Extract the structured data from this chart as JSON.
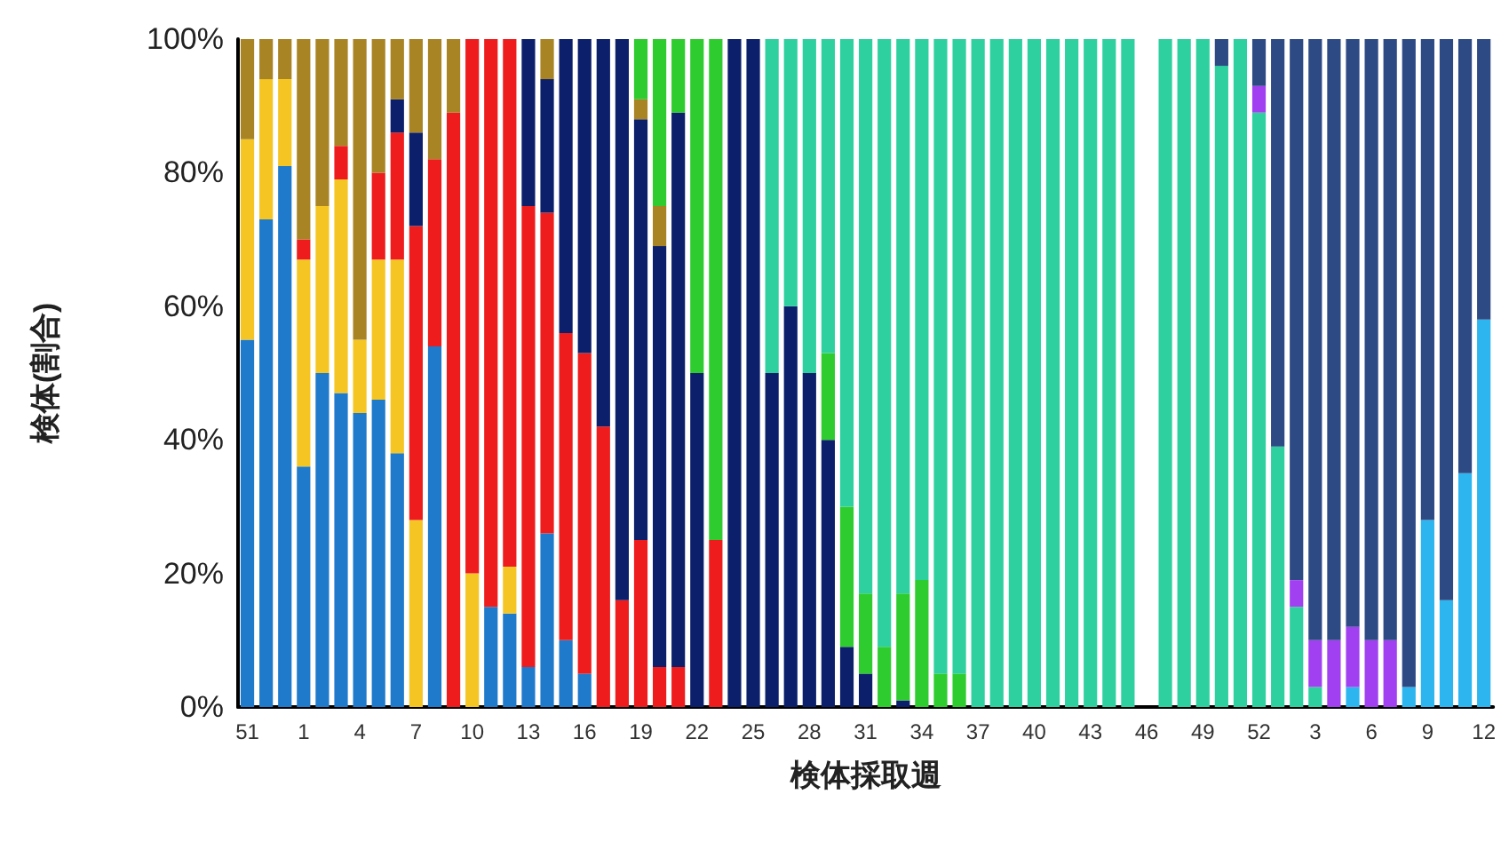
{
  "chart_data": {
    "type": "bar",
    "stacked": true,
    "xlabel": "検体採取週",
    "ylabel": "検体(割合)",
    "grid": false,
    "categories": [
      "51",
      null,
      null,
      "1",
      null,
      null,
      "4",
      null,
      null,
      "7",
      null,
      null,
      "10",
      null,
      null,
      "13",
      null,
      null,
      "16",
      null,
      null,
      "19",
      null,
      null,
      "22",
      null,
      null,
      "25",
      null,
      null,
      "28",
      null,
      null,
      "31",
      null,
      null,
      "34",
      null,
      null,
      "37",
      null,
      null,
      "40",
      null,
      null,
      "43",
      null,
      null,
      "46",
      null,
      null,
      "49",
      null,
      null,
      "52",
      null,
      null,
      "3",
      null,
      null,
      "6",
      null,
      null,
      "9",
      null,
      null,
      "12"
    ],
    "ylim": [
      0,
      100
    ],
    "yticks": [
      {
        "value": 0,
        "label": "0%"
      },
      {
        "value": 20,
        "label": "20%"
      },
      {
        "value": 40,
        "label": "40%"
      },
      {
        "value": 60,
        "label": "60%"
      },
      {
        "value": 80,
        "label": "80%"
      },
      {
        "value": 100,
        "label": "100%"
      }
    ],
    "series": [
      {
        "color": "#1f7acb",
        "values": [
          55,
          73,
          81,
          36,
          50,
          47,
          44,
          46,
          38,
          0,
          54,
          0,
          0,
          15,
          14,
          6,
          26,
          10,
          5,
          0,
          0,
          0,
          0,
          0,
          0,
          0,
          0,
          0,
          0,
          0,
          0,
          0,
          0,
          0,
          0,
          0,
          0,
          0,
          0,
          0,
          0,
          0,
          0,
          0,
          0,
          0,
          0,
          0,
          0,
          0,
          0,
          0,
          0,
          0,
          0,
          0,
          0,
          0,
          0,
          0,
          0,
          0,
          0,
          0,
          0,
          0,
          0
        ]
      },
      {
        "color": "#f5c623",
        "values": [
          30,
          21,
          13,
          31,
          25,
          32,
          11,
          21,
          29,
          28,
          0,
          0,
          20,
          0,
          7,
          0,
          0,
          0,
          0,
          0,
          0,
          0,
          0,
          0,
          0,
          0,
          0,
          0,
          0,
          0,
          0,
          0,
          0,
          0,
          0,
          0,
          0,
          0,
          0,
          0,
          0,
          0,
          0,
          0,
          0,
          0,
          0,
          0,
          0,
          0,
          0,
          0,
          0,
          0,
          0,
          0,
          0,
          0,
          0,
          0,
          0,
          0,
          0,
          0,
          0,
          0,
          0
        ]
      },
      {
        "color": "#ee1c1c",
        "values": [
          0,
          0,
          0,
          3,
          0,
          5,
          0,
          13,
          19,
          44,
          28,
          89,
          80,
          85,
          79,
          69,
          48,
          46,
          48,
          42,
          16,
          25,
          6,
          6,
          0,
          25,
          0,
          0,
          0,
          0,
          0,
          0,
          0,
          0,
          0,
          0,
          0,
          0,
          0,
          0,
          0,
          0,
          0,
          0,
          0,
          0,
          0,
          0,
          0,
          0,
          0,
          0,
          0,
          0,
          0,
          0,
          0,
          0,
          0,
          0,
          0,
          0,
          0,
          0,
          0,
          0,
          0
        ]
      },
      {
        "color": "#0c1f6b",
        "values": [
          0,
          0,
          0,
          0,
          0,
          0,
          0,
          0,
          5,
          14,
          0,
          0,
          0,
          0,
          0,
          25,
          20,
          44,
          47,
          58,
          84,
          63,
          63,
          83,
          50,
          0,
          100,
          100,
          50,
          60,
          50,
          40,
          9,
          5,
          0,
          1,
          0,
          0,
          0,
          0,
          0,
          0,
          0,
          0,
          0,
          0,
          0,
          0,
          0,
          0,
          0,
          0,
          0,
          0,
          0,
          0,
          0,
          0,
          0,
          0,
          0,
          0,
          0,
          0,
          0,
          0,
          0
        ]
      },
      {
        "color": "#a88425",
        "values": [
          15,
          6,
          6,
          30,
          25,
          16,
          45,
          20,
          9,
          14,
          18,
          11,
          0,
          0,
          0,
          0,
          6,
          0,
          0,
          0,
          0,
          3,
          6,
          0,
          0,
          0,
          0,
          0,
          0,
          0,
          0,
          0,
          0,
          0,
          0,
          0,
          0,
          0,
          0,
          0,
          0,
          0,
          0,
          0,
          0,
          0,
          0,
          0,
          0,
          0,
          0,
          0,
          0,
          0,
          0,
          0,
          0,
          0,
          0,
          0,
          0,
          0,
          0,
          0,
          0,
          0,
          0
        ]
      },
      {
        "color": "#2ecc2e",
        "values": [
          0,
          0,
          0,
          0,
          0,
          0,
          0,
          0,
          0,
          0,
          0,
          0,
          0,
          0,
          0,
          0,
          0,
          0,
          0,
          0,
          0,
          9,
          25,
          11,
          50,
          75,
          0,
          0,
          0,
          0,
          0,
          13,
          21,
          12,
          9,
          16,
          19,
          5,
          5,
          0,
          0,
          0,
          0,
          0,
          0,
          0,
          0,
          0,
          0,
          0,
          0,
          0,
          0,
          0,
          0,
          0,
          0,
          0,
          0,
          0,
          0,
          0,
          0,
          0,
          0,
          0,
          0
        ]
      },
      {
        "color": "#2fd0a0",
        "values": [
          0,
          0,
          0,
          0,
          0,
          0,
          0,
          0,
          0,
          0,
          0,
          0,
          0,
          0,
          0,
          0,
          0,
          0,
          0,
          0,
          0,
          0,
          0,
          0,
          0,
          0,
          0,
          0,
          50,
          40,
          50,
          47,
          70,
          83,
          91,
          83,
          81,
          95,
          95,
          100,
          100,
          100,
          100,
          100,
          100,
          100,
          100,
          100,
          0,
          100,
          100,
          100,
          96,
          100,
          89,
          39,
          15,
          3,
          0,
          0,
          0,
          0,
          0,
          0,
          0,
          0,
          0
        ]
      },
      {
        "color": "#2db5ef",
        "values": [
          0,
          0,
          0,
          0,
          0,
          0,
          0,
          0,
          0,
          0,
          0,
          0,
          0,
          0,
          0,
          0,
          0,
          0,
          0,
          0,
          0,
          0,
          0,
          0,
          0,
          0,
          0,
          0,
          0,
          0,
          0,
          0,
          0,
          0,
          0,
          0,
          0,
          0,
          0,
          0,
          0,
          0,
          0,
          0,
          0,
          0,
          0,
          0,
          0,
          0,
          0,
          0,
          0,
          0,
          0,
          0,
          0,
          0,
          0,
          3,
          0,
          0,
          3,
          28,
          16,
          35,
          58
        ]
      },
      {
        "color": "#a040f0",
        "values": [
          0,
          0,
          0,
          0,
          0,
          0,
          0,
          0,
          0,
          0,
          0,
          0,
          0,
          0,
          0,
          0,
          0,
          0,
          0,
          0,
          0,
          0,
          0,
          0,
          0,
          0,
          0,
          0,
          0,
          0,
          0,
          0,
          0,
          0,
          0,
          0,
          0,
          0,
          0,
          0,
          0,
          0,
          0,
          0,
          0,
          0,
          0,
          0,
          0,
          0,
          0,
          0,
          0,
          0,
          4,
          0,
          4,
          7,
          10,
          9,
          10,
          10,
          0,
          0,
          0,
          0,
          0
        ]
      },
      {
        "color": "#2d4a85",
        "values": [
          0,
          0,
          0,
          0,
          0,
          0,
          0,
          0,
          0,
          0,
          0,
          0,
          0,
          0,
          0,
          0,
          0,
          0,
          0,
          0,
          0,
          0,
          0,
          0,
          0,
          0,
          0,
          0,
          0,
          0,
          0,
          0,
          0,
          0,
          0,
          0,
          0,
          0,
          0,
          0,
          0,
          0,
          0,
          0,
          0,
          0,
          0,
          0,
          0,
          0,
          0,
          0,
          4,
          0,
          7,
          61,
          81,
          90,
          90,
          88,
          90,
          90,
          97,
          72,
          84,
          65,
          42
        ]
      }
    ]
  }
}
